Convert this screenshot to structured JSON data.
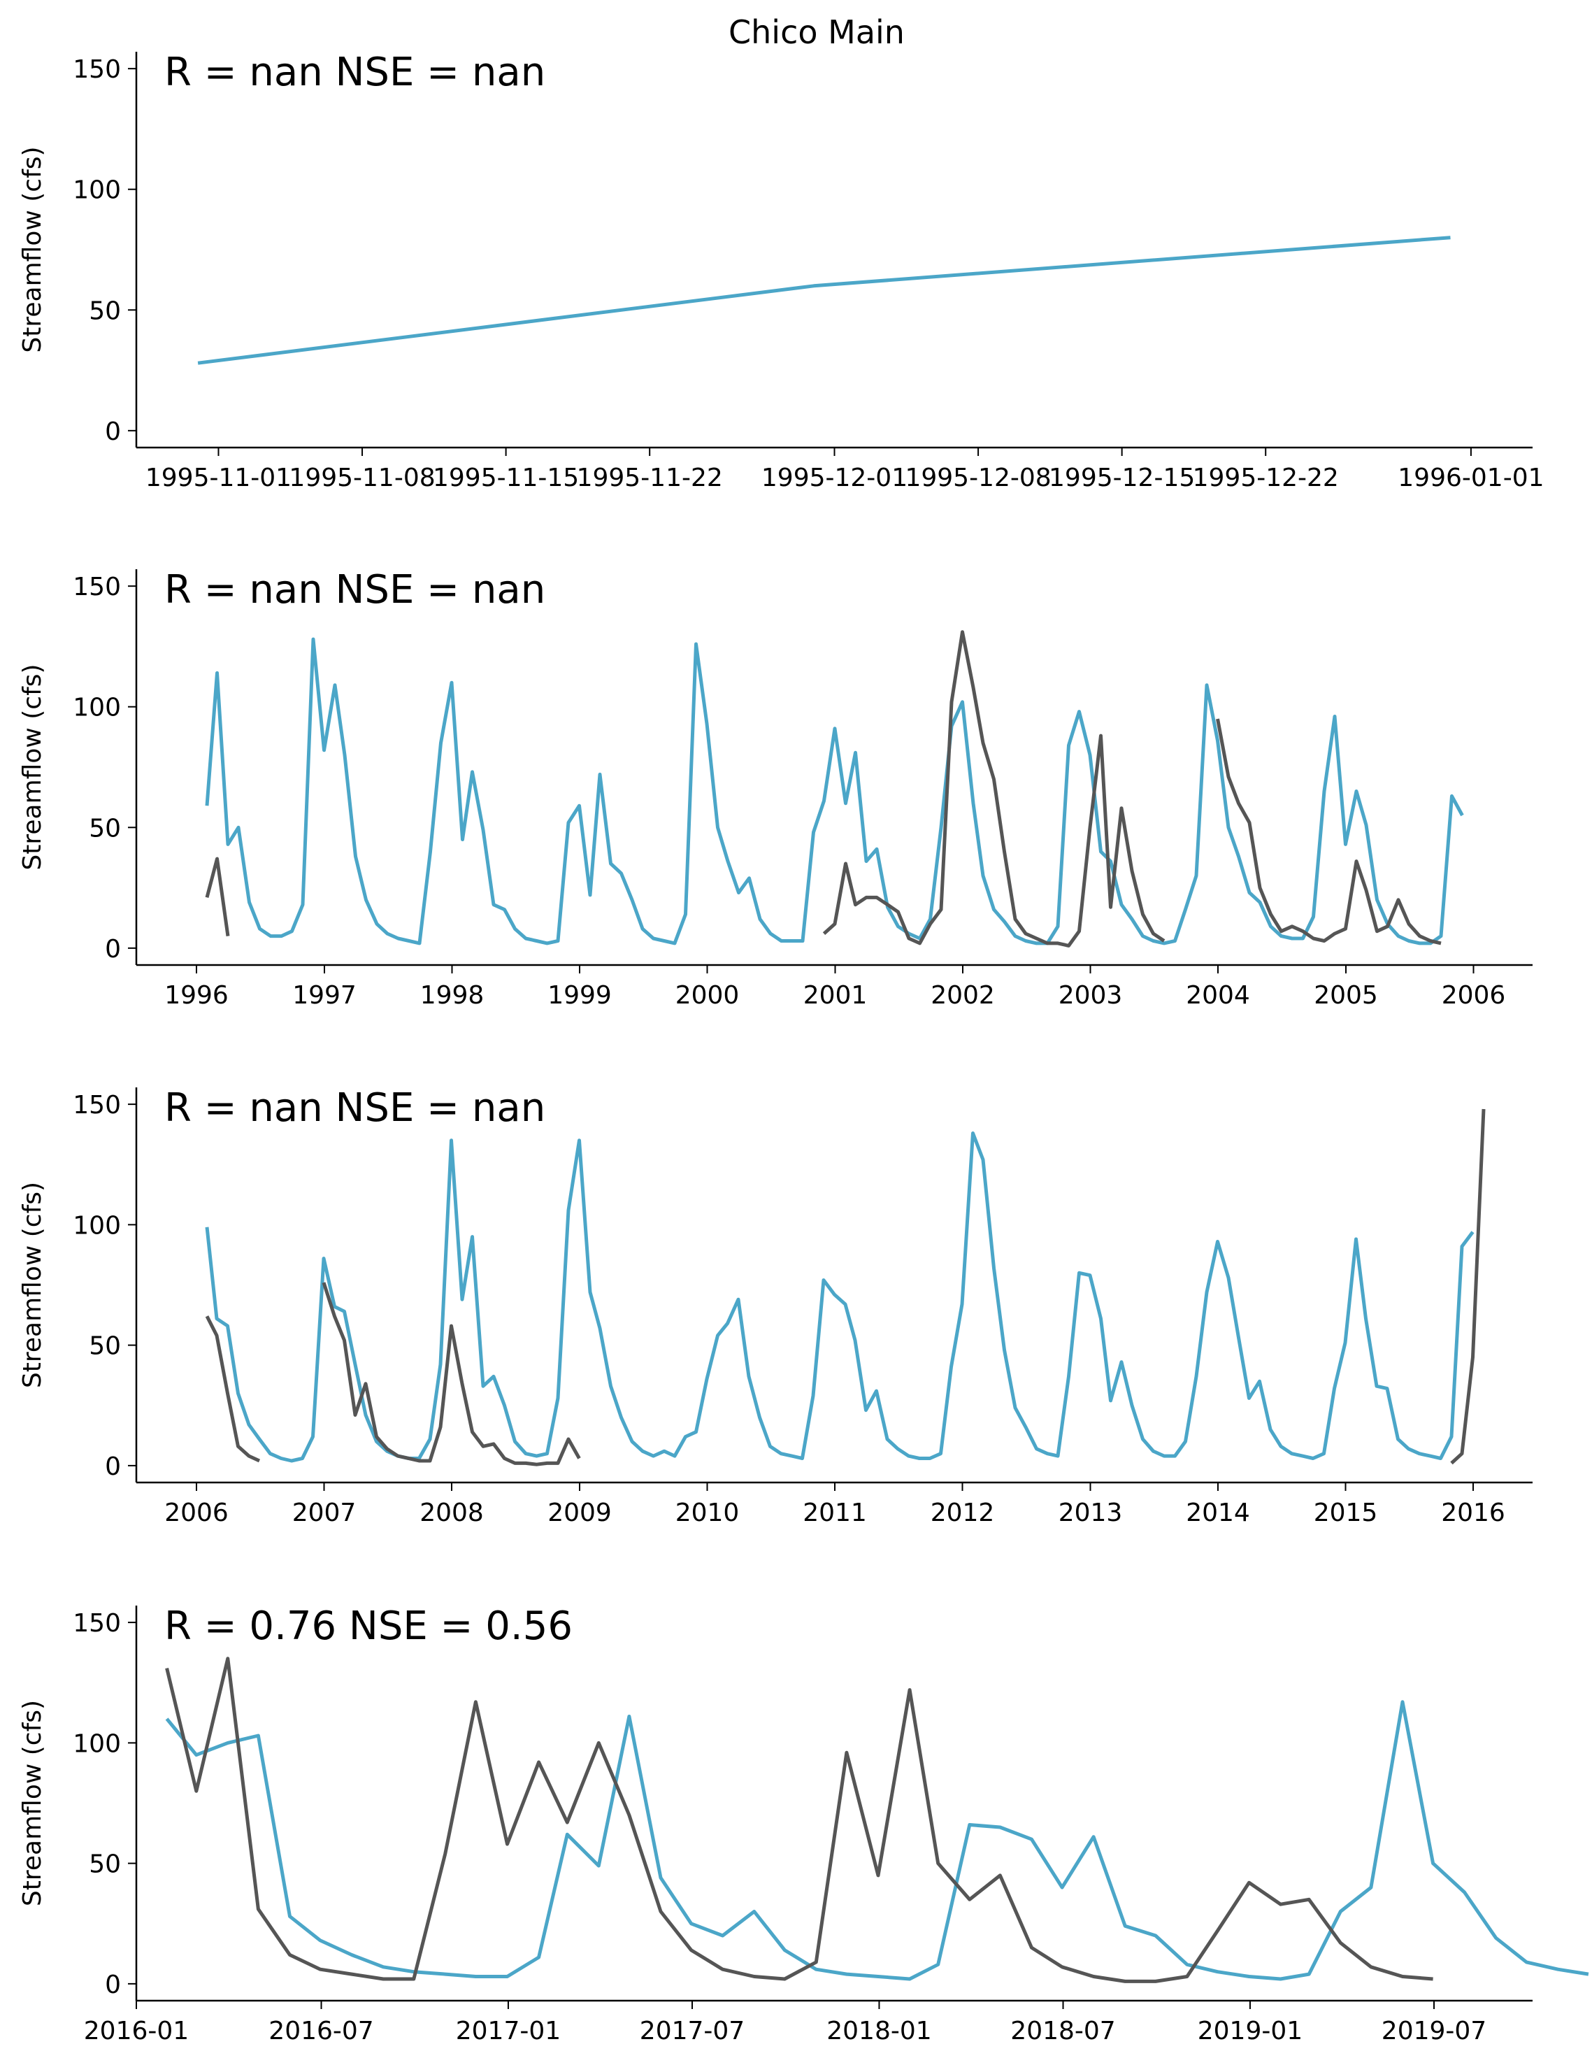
{
  "suptitle": "Chico Main",
  "colors": {
    "sim": "#4ba6c8",
    "obs": "#555555",
    "axis": "#000000"
  },
  "chart_data": [
    {
      "type": "line",
      "annotation": "R = nan  NSE = nan",
      "ylabel": "Streamflow (cfs)",
      "ylim": [
        -7,
        157
      ],
      "yticks": [
        0,
        50,
        100,
        150
      ],
      "xlim": [
        "1995-10-28",
        "1996-01-04"
      ],
      "xticks": [
        "1995-11-01",
        "1995-11-08",
        "1995-11-15",
        "1995-11-22",
        "1995-12-01",
        "1995-12-08",
        "1995-12-15",
        "1995-12-22",
        "1996-01-01"
      ],
      "series": [
        {
          "key": "sim",
          "x": [
            "1995-10-31",
            "1995-11-30",
            "1995-12-31"
          ],
          "values": [
            28,
            60,
            80
          ]
        }
      ]
    },
    {
      "type": "line",
      "annotation": "R = nan  NSE = nan",
      "ylabel": "Streamflow (cfs)",
      "ylim": [
        -7,
        157
      ],
      "yticks": [
        0,
        50,
        100,
        150
      ],
      "xlim": [
        "1995-07-13",
        "2006-06-19"
      ],
      "xticks": [
        "1996",
        "1997",
        "1998",
        "1999",
        "2000",
        "2001",
        "2002",
        "2003",
        "2004",
        "2005",
        "2006"
      ],
      "series": [
        {
          "key": "sim",
          "start": "1996-01",
          "values": [
            59,
            114,
            43,
            50,
            19,
            8,
            5,
            5,
            7,
            18,
            128,
            82,
            109,
            80,
            38,
            20,
            10,
            6,
            4,
            3,
            2,
            40,
            85,
            110,
            45,
            73,
            49,
            18,
            16,
            8,
            4,
            3,
            2,
            3,
            52,
            59,
            22,
            72,
            35,
            31,
            20,
            8,
            4,
            3,
            2,
            14,
            126,
            93,
            50,
            36,
            23,
            29,
            12,
            6,
            3,
            3,
            3,
            48,
            61,
            91,
            60,
            81,
            36,
            41,
            17,
            9,
            6,
            4,
            12,
            50,
            92,
            102,
            60,
            30,
            16,
            11,
            5,
            3,
            2,
            2,
            9,
            84,
            98,
            80,
            40,
            36,
            18,
            12,
            5,
            3,
            2,
            3,
            16,
            30,
            109,
            86,
            50,
            38,
            23,
            19,
            9,
            5,
            4,
            4,
            13,
            65,
            96,
            43,
            65,
            51,
            20,
            10,
            5,
            3,
            2,
            2,
            5,
            63,
            55
          ]
        },
        {
          "key": "obs",
          "start": "1996-01",
          "values": [
            21,
            37,
            5
          ]
        },
        {
          "key": "obs",
          "start": "2000-11",
          "values": [
            6,
            10,
            35,
            18,
            21,
            21,
            18,
            15,
            4,
            2,
            10,
            16,
            102,
            131,
            108,
            85,
            70,
            40,
            12,
            6,
            4,
            2,
            2,
            1,
            7,
            50,
            88,
            17,
            58,
            32,
            14,
            6,
            3
          ]
        },
        {
          "key": "obs",
          "start": "2003-12",
          "values": [
            95,
            71,
            60,
            52,
            25,
            14,
            7,
            9,
            7,
            4,
            3,
            6,
            8,
            36,
            24,
            7,
            9,
            20,
            10,
            5,
            3,
            2
          ]
        }
      ]
    },
    {
      "type": "line",
      "annotation": "R = nan  NSE = nan",
      "ylabel": "Streamflow (cfs)",
      "ylim": [
        -7,
        157
      ],
      "yticks": [
        0,
        50,
        100,
        150
      ],
      "xlim": [
        "2005-07-13",
        "2016-06-19"
      ],
      "xticks": [
        "2006",
        "2007",
        "2008",
        "2009",
        "2010",
        "2011",
        "2012",
        "2013",
        "2014",
        "2015",
        "2016"
      ],
      "series": [
        {
          "key": "sim",
          "start": "2006-01",
          "values": [
            99,
            61,
            58,
            30,
            17,
            11,
            5,
            3,
            2,
            3,
            12,
            86,
            66,
            64,
            42,
            21,
            10,
            6,
            4,
            3,
            3,
            11,
            42,
            135,
            69,
            95,
            33,
            37,
            25,
            10,
            5,
            4,
            5,
            28,
            106,
            135,
            72,
            57,
            33,
            20,
            10,
            6,
            4,
            6,
            4,
            12,
            14,
            36,
            54,
            59,
            69,
            37,
            20,
            8,
            5,
            4,
            3,
            29,
            77,
            71,
            67,
            52,
            23,
            31,
            11,
            7,
            4,
            3,
            3,
            5,
            41,
            67,
            138,
            127,
            82,
            48,
            24,
            16,
            7,
            5,
            4,
            37,
            80,
            79,
            61,
            27,
            43,
            25,
            11,
            6,
            4,
            4,
            10,
            37,
            72,
            93,
            78,
            54,
            28,
            35,
            15,
            8,
            5,
            4,
            3,
            5,
            32,
            51,
            94,
            61,
            33,
            32,
            11,
            7,
            5,
            4,
            3,
            12,
            91,
            97
          ]
        },
        {
          "key": "obs",
          "start": "2006-01",
          "values": [
            62,
            54,
            30,
            8,
            4,
            2
          ]
        },
        {
          "key": "obs",
          "start": "2006-12",
          "values": [
            76,
            62,
            52,
            21,
            34,
            12,
            7,
            4,
            3,
            2,
            2,
            16,
            58,
            34,
            14,
            8,
            9,
            3,
            1,
            1,
            0.5,
            1,
            1,
            11,
            3
          ]
        },
        {
          "key": "obs",
          "start": "2015-10",
          "values": [
            1,
            5,
            45,
            148
          ]
        }
      ]
    },
    {
      "type": "line",
      "annotation": "R = 0.76  NSE = 0.56",
      "ylabel": "Streamflow (cfs)",
      "ylim": [
        -7,
        157
      ],
      "yticks": [
        0,
        50,
        100,
        150
      ],
      "xlim": [
        "2016-01-01",
        "2019-10-06"
      ],
      "xticks": [
        "2016-01",
        "2016-07",
        "2017-01",
        "2017-07",
        "2018-01",
        "2018-07",
        "2019-01",
        "2019-07"
      ],
      "series": [
        {
          "key": "sim",
          "start": "2016-01",
          "values": [
            110,
            95,
            100,
            103,
            28,
            18,
            12,
            7,
            5,
            4,
            3,
            3,
            11,
            62,
            49,
            111,
            44,
            25,
            20,
            30,
            14,
            6,
            4,
            3,
            2,
            8,
            66,
            65,
            60,
            40,
            61,
            24,
            20,
            8,
            5,
            3,
            2,
            4,
            30,
            40,
            117,
            50,
            38,
            19,
            9,
            6,
            4
          ]
        },
        {
          "key": "obs",
          "start": "2016-01",
          "values": [
            131,
            80,
            135,
            31,
            12,
            6,
            4,
            2,
            2,
            54,
            117,
            58,
            92,
            67,
            100,
            70,
            30,
            14,
            6,
            3,
            2,
            9,
            96,
            45,
            122,
            50,
            35,
            45,
            15,
            7,
            3,
            1,
            1,
            3,
            22,
            42,
            33,
            35,
            17,
            7,
            3,
            2
          ]
        }
      ]
    }
  ]
}
